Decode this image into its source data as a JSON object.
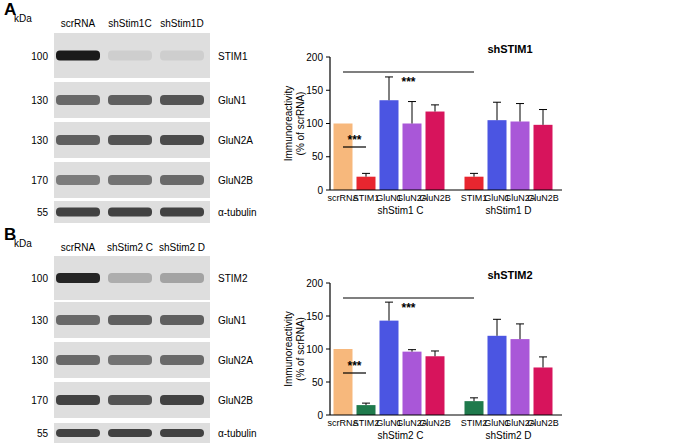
{
  "chart_data": [
    {
      "type": "bar",
      "title": "shSTIM1",
      "y_label": [
        "Immunoreactivity",
        "(% of scrRNA)"
      ],
      "categories": [
        "scrRNA",
        "STIM1",
        "GluN1",
        "GluN2A",
        "GluN2B",
        "STIM1",
        "GluN1",
        "GluN2A",
        "GluN2B"
      ],
      "values": [
        100,
        20,
        135,
        100,
        118,
        20,
        105,
        103,
        98
      ],
      "errors": [
        0,
        5,
        35,
        33,
        10,
        5,
        27,
        27,
        23
      ],
      "colors": [
        "#f7b87c",
        "#e8262f",
        "#4b55e2",
        "#a957d8",
        "#d7145c",
        "#e8262f",
        "#4b55e2",
        "#a957d8",
        "#d7145c"
      ],
      "groups": [
        {
          "label": "shStim1 C",
          "from": 1,
          "to": 4
        },
        {
          "label": "shStim1 D",
          "from": 5,
          "to": 8
        }
      ],
      "significance": [
        {
          "from": 0,
          "to": 1,
          "label": "***"
        },
        {
          "from": 0,
          "to": 5,
          "label": "***"
        }
      ],
      "ylim": [
        0,
        200
      ],
      "yticks": [
        0,
        50,
        100,
        150,
        200
      ]
    },
    {
      "type": "bar",
      "title": "shSTIM2",
      "y_label": [
        "Immunoreactivity",
        "(% of scrRNA)"
      ],
      "categories": [
        "scrRNA",
        "STIM2",
        "GluN1",
        "GluN2A",
        "GluN2B",
        "STIM2",
        "GluN1",
        "GluN2A",
        "GluN2B"
      ],
      "values": [
        100,
        15,
        143,
        96,
        89,
        21,
        120,
        115,
        72
      ],
      "errors": [
        0,
        3,
        28,
        3,
        8,
        5,
        25,
        23,
        16
      ],
      "colors": [
        "#f7b87c",
        "#1f7a4c",
        "#4b55e2",
        "#a957d8",
        "#d7145c",
        "#1f7a4c",
        "#4b55e2",
        "#a957d8",
        "#d7145c"
      ],
      "groups": [
        {
          "label": "shStim2 C",
          "from": 1,
          "to": 4
        },
        {
          "label": "shStim2 D",
          "from": 5,
          "to": 8
        }
      ],
      "significance": [
        {
          "from": 0,
          "to": 1,
          "label": "***"
        },
        {
          "from": 0,
          "to": 5,
          "label": "***"
        }
      ],
      "ylim": [
        0,
        200
      ],
      "yticks": [
        0,
        50,
        100,
        150,
        200
      ]
    }
  ],
  "blots": [
    {
      "panel": "A",
      "kda_header": "kDa",
      "lanes": [
        "scrRNA",
        "shStim1C",
        "shStim1D"
      ],
      "rows": [
        {
          "label": "STIM1",
          "kda": 100,
          "intensity": [
            1,
            0.08,
            0.08
          ]
        },
        {
          "label": "GluN1",
          "kda": 130,
          "intensity": [
            0.6,
            0.65,
            0.7
          ]
        },
        {
          "label": "GluN2A",
          "kda": 130,
          "intensity": [
            0.65,
            0.7,
            0.75
          ]
        },
        {
          "label": "GluN2B",
          "kda": 170,
          "intensity": [
            0.5,
            0.55,
            0.6
          ]
        },
        {
          "label": "α-tubulin",
          "kda": 55,
          "intensity": [
            0.8,
            0.8,
            0.8
          ]
        }
      ]
    },
    {
      "panel": "B",
      "kda_header": "kDa",
      "lanes": [
        "scrRNA",
        "shStim2 C",
        "shStim2 D"
      ],
      "rows": [
        {
          "label": "STIM2",
          "kda": 100,
          "intensity": [
            0.95,
            0.25,
            0.3
          ]
        },
        {
          "label": "GluN1",
          "kda": 130,
          "intensity": [
            0.6,
            0.65,
            0.65
          ]
        },
        {
          "label": "GluN2A",
          "kda": 130,
          "intensity": [
            0.6,
            0.55,
            0.6
          ]
        },
        {
          "label": "GluN2B",
          "kda": 170,
          "intensity": [
            0.8,
            0.7,
            0.8
          ]
        },
        {
          "label": "α-tubulin",
          "kda": 55,
          "intensity": [
            0.8,
            0.8,
            0.8
          ]
        }
      ]
    }
  ]
}
